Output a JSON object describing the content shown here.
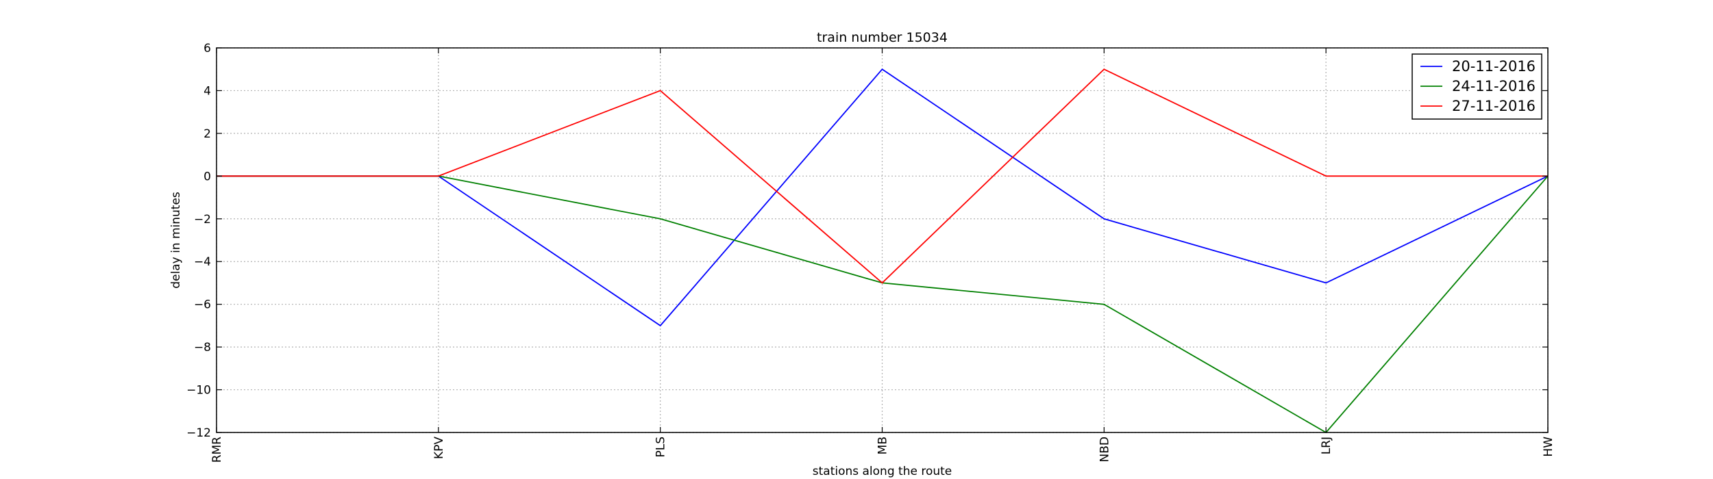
{
  "chart_data": {
    "type": "line",
    "title": "train number 15034",
    "xlabel": "stations along the route",
    "ylabel": "delay in minutes",
    "categories": [
      "RMR",
      "KPV",
      "PLS",
      "MB",
      "NBD",
      "LRJ",
      "HW"
    ],
    "ylim": [
      -12,
      6
    ],
    "yticks": [
      6,
      4,
      2,
      0,
      -2,
      -4,
      -6,
      -8,
      -10,
      -12
    ],
    "ytick_labels": [
      "6",
      "4",
      "2",
      "0",
      "−2",
      "−4",
      "−6",
      "−8",
      "−10",
      "−12"
    ],
    "grid": true,
    "legend_position": "top-right",
    "series": [
      {
        "name": "20-11-2016",
        "color": "#0000ff",
        "values": [
          0,
          0,
          -7,
          5,
          -2,
          -5,
          0
        ]
      },
      {
        "name": "24-11-2016",
        "color": "#008000",
        "values": [
          0,
          0,
          -2,
          -5,
          -6,
          -12,
          0
        ]
      },
      {
        "name": "27-11-2016",
        "color": "#ff0000",
        "values": [
          0,
          0,
          4,
          -5,
          5,
          0,
          0
        ]
      }
    ]
  }
}
